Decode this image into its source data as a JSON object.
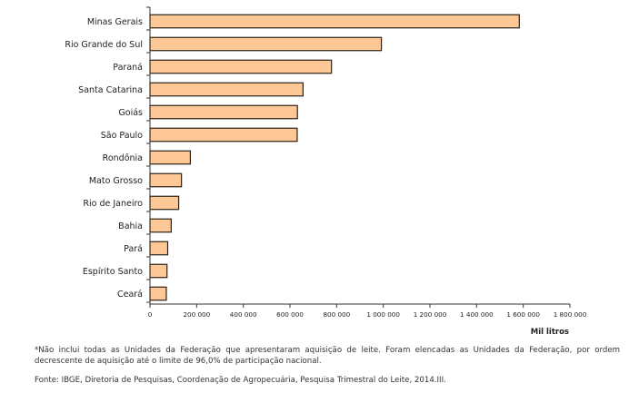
{
  "chart_data": {
    "type": "bar",
    "orientation": "horizontal",
    "title": "",
    "xlabel": "Mil litros",
    "ylabel": "",
    "xlim": [
      0,
      1800000
    ],
    "xticks": [
      0,
      200000,
      400000,
      600000,
      800000,
      1000000,
      1200000,
      1400000,
      1600000,
      1800000
    ],
    "xtick_labels": [
      "0",
      "200 000",
      "400 000",
      "600 000",
      "800 000",
      "1 000 000",
      "1 200 000",
      "1 400 000",
      "1 600 000",
      "1 800 000"
    ],
    "grid": false,
    "categories": [
      "Minas Gerais",
      "Rio Grande do Sul",
      "Paraná",
      "Santa Catarina",
      "Goiás",
      "São Paulo",
      "Rondônia",
      "Mato Grosso",
      "Rio de Janeiro",
      "Bahia",
      "Pará",
      "Espírito Santo",
      "Ceará"
    ],
    "values": [
      1583000,
      992000,
      778000,
      656000,
      632000,
      631000,
      173000,
      135000,
      123000,
      91000,
      76000,
      73000,
      70000
    ],
    "colors": {
      "fill": "#fdc896",
      "stroke": "#2b2118",
      "axis": "#333333"
    }
  },
  "footnotes": {
    "note": "*Não inclui todas as Unidades da Federação que apresentaram aquisição de leite. Foram elencadas as Unidades da Federação, por ordem decrescente de aquisição até o limite de 96,0% de participação nacional.",
    "source": "Fonte: IBGE, Diretoria de Pesquisas, Coordenação de Agropecuária, Pesquisa Trimestral do Leite, 2014.III."
  }
}
